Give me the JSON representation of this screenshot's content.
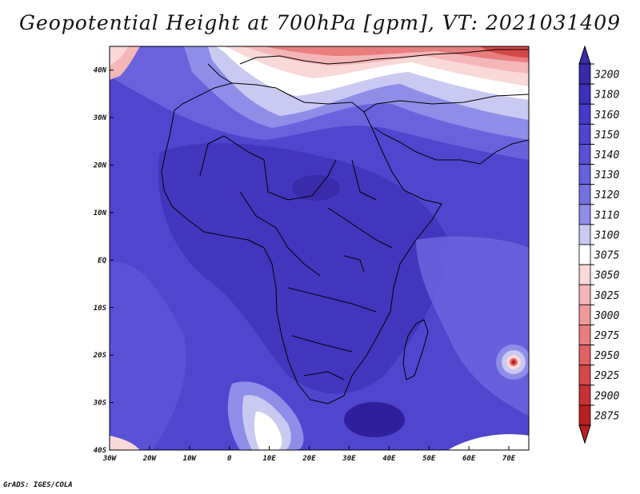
{
  "title": "Geopotential Height at 700hPa [gpm], VT: 2021031409",
  "credit": "GrADS: IGES/COLA",
  "map": {
    "lon_range": [
      -30,
      75
    ],
    "lat_range": [
      -40,
      45
    ],
    "x_ticks": [
      "30W",
      "20W",
      "10W",
      "0",
      "10E",
      "20E",
      "30E",
      "40E",
      "50E",
      "60E",
      "70E"
    ],
    "y_ticks": [
      "40N",
      "30N",
      "20N",
      "10N",
      "EQ",
      "10S",
      "20S",
      "30S",
      "40S"
    ]
  },
  "colorbar": {
    "levels": [
      "3200",
      "3180",
      "3160",
      "3150",
      "3140",
      "3130",
      "3120",
      "3110",
      "3100",
      "3075",
      "3050",
      "3025",
      "3000",
      "2975",
      "2950",
      "2925",
      "2900",
      "2875"
    ],
    "colors": [
      "#3a2aa8",
      "#3d30b8",
      "#4539c8",
      "#5045cf",
      "#5a50d6",
      "#6560dc",
      "#7471e2",
      "#8e8de8",
      "#c9c9f2",
      "#ffffff",
      "#f9d8d8",
      "#f4b6b6",
      "#ef9a9a",
      "#e87e7e",
      "#e06262",
      "#d64848",
      "#c83232",
      "#b82020"
    ]
  }
}
